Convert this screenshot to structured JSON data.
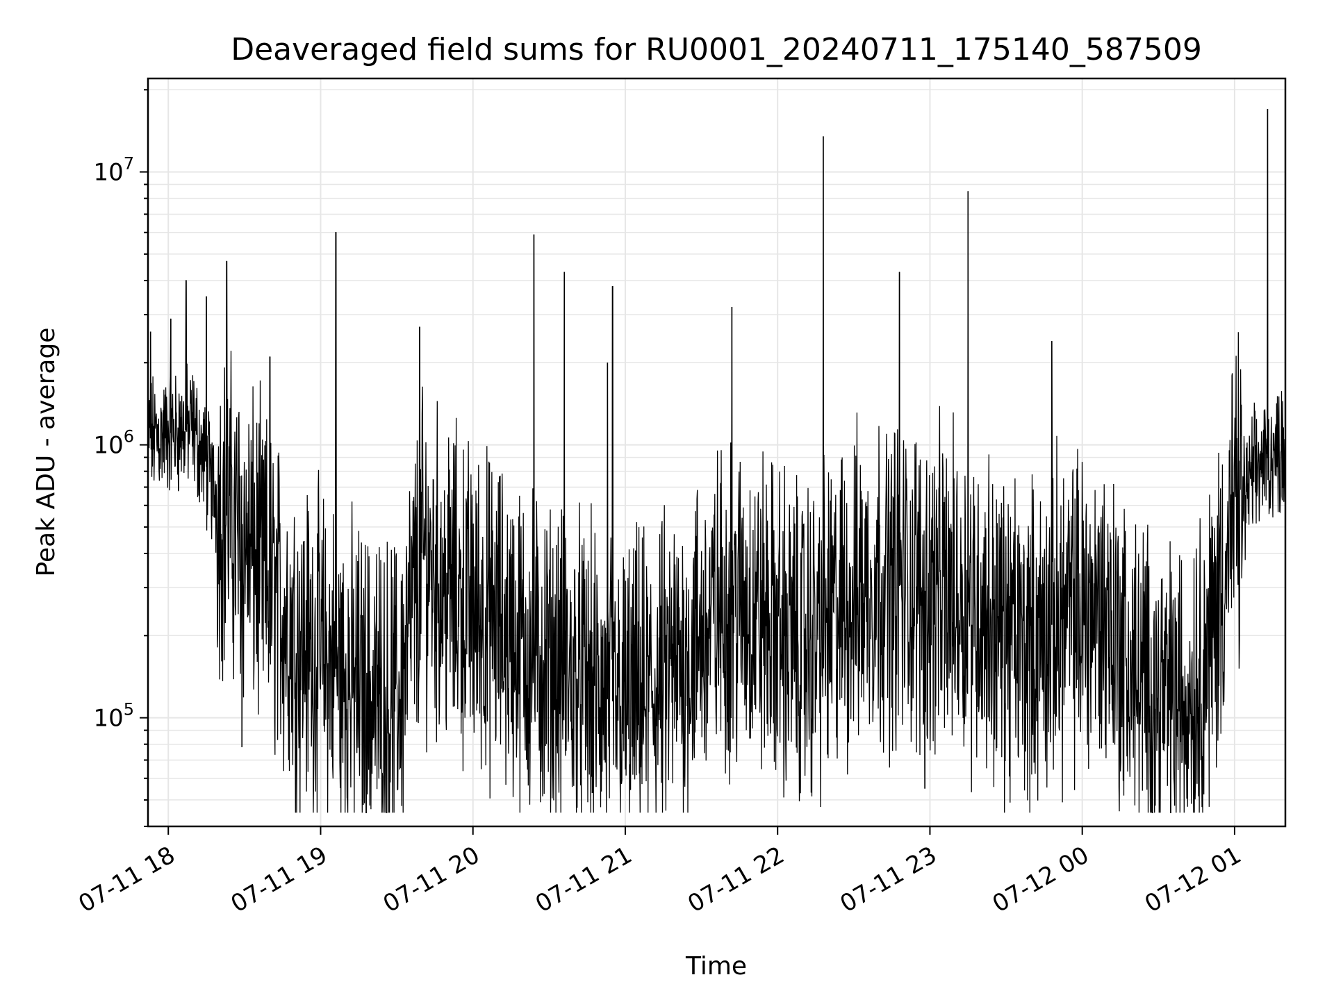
{
  "chart_data": {
    "type": "line",
    "title": "Deaveraged field sums for RU0001_20240711_175140_587509",
    "xlabel": "Time",
    "ylabel": "Peak ADU - average",
    "yscale": "log",
    "ylim": [
      40000,
      22000000
    ],
    "xlim": [
      "2024-07-11 17:52",
      "2024-07-12 01:20"
    ],
    "x_ticks": [
      "07-11 18",
      "07-11 19",
      "07-11 20",
      "07-11 21",
      "07-11 22",
      "07-11 23",
      "07-12 00",
      "07-12 01"
    ],
    "y_ticks": [
      {
        "value": 100000,
        "base": "10",
        "exp": "5"
      },
      {
        "value": 1000000,
        "base": "10",
        "exp": "6"
      },
      {
        "value": 10000000,
        "base": "10",
        "exp": "7"
      }
    ],
    "grid": true,
    "line_color": "#000000",
    "grid_color": "#e6e6e6",
    "series": [
      {
        "x": [
          "2024-07-11 17:52",
          "2024-07-11 18:00",
          "2024-07-11 18:10",
          "2024-07-11 18:20",
          "2024-07-11 18:30",
          "2024-07-11 18:40",
          "2024-07-11 18:50",
          "2024-07-11 19:00",
          "2024-07-11 19:10",
          "2024-07-11 19:20",
          "2024-07-11 19:30",
          "2024-07-11 19:40",
          "2024-07-11 19:50",
          "2024-07-11 20:00",
          "2024-07-11 20:10",
          "2024-07-11 20:20",
          "2024-07-11 20:30",
          "2024-07-11 20:40",
          "2024-07-11 20:50",
          "2024-07-11 21:00",
          "2024-07-11 21:10",
          "2024-07-11 21:20",
          "2024-07-11 21:30",
          "2024-07-11 21:40",
          "2024-07-11 21:50",
          "2024-07-11 22:00",
          "2024-07-11 22:10",
          "2024-07-11 22:20",
          "2024-07-11 22:30",
          "2024-07-11 22:40",
          "2024-07-11 22:50",
          "2024-07-11 23:00",
          "2024-07-11 23:10",
          "2024-07-11 23:20",
          "2024-07-11 23:30",
          "2024-07-11 23:40",
          "2024-07-11 23:50",
          "2024-07-12 00:00",
          "2024-07-12 00:10",
          "2024-07-12 00:20",
          "2024-07-12 00:30",
          "2024-07-12 00:40",
          "2024-07-12 00:50",
          "2024-07-12 01:00",
          "2024-07-12 01:10",
          "2024-07-12 01:20"
        ],
        "y": [
          1050000,
          1100000,
          1150000,
          600000,
          450000,
          300000,
          200000,
          170000,
          140000,
          120000,
          110000,
          400000,
          300000,
          250000,
          220000,
          180000,
          150000,
          140000,
          120000,
          110000,
          120000,
          150000,
          200000,
          260000,
          250000,
          210000,
          180000,
          220000,
          280000,
          320000,
          300000,
          290000,
          280000,
          250000,
          200000,
          180000,
          230000,
          250000,
          240000,
          140000,
          120000,
          110000,
          180000,
          550000,
          850000,
          1000000
        ],
        "noise_amplitude": 1.8,
        "spikes": [
          {
            "x": "2024-07-11 17:53",
            "y": 2600000
          },
          {
            "x": "2024-07-11 18:01",
            "y": 2900000
          },
          {
            "x": "2024-07-11 18:07",
            "y": 4000000
          },
          {
            "x": "2024-07-11 18:15",
            "y": 3500000
          },
          {
            "x": "2024-07-11 18:23",
            "y": 4700000
          },
          {
            "x": "2024-07-11 18:29",
            "y": 78000
          },
          {
            "x": "2024-07-11 18:40",
            "y": 2100000
          },
          {
            "x": "2024-07-11 19:06",
            "y": 6000000
          },
          {
            "x": "2024-07-11 19:39",
            "y": 2700000
          },
          {
            "x": "2024-07-11 20:24",
            "y": 5900000
          },
          {
            "x": "2024-07-11 20:36",
            "y": 4300000
          },
          {
            "x": "2024-07-11 20:47",
            "y": 53000
          },
          {
            "x": "2024-07-11 20:53",
            "y": 2000000
          },
          {
            "x": "2024-07-11 20:55",
            "y": 3800000
          },
          {
            "x": "2024-07-11 21:42",
            "y": 3200000
          },
          {
            "x": "2024-07-11 22:18",
            "y": 13500000
          },
          {
            "x": "2024-07-11 22:48",
            "y": 4300000
          },
          {
            "x": "2024-07-11 22:58",
            "y": 55000
          },
          {
            "x": "2024-07-11 23:15",
            "y": 8500000
          },
          {
            "x": "2024-07-11 23:48",
            "y": 2400000
          },
          {
            "x": "2024-07-12 01:13",
            "y": 17000000
          }
        ]
      }
    ]
  }
}
